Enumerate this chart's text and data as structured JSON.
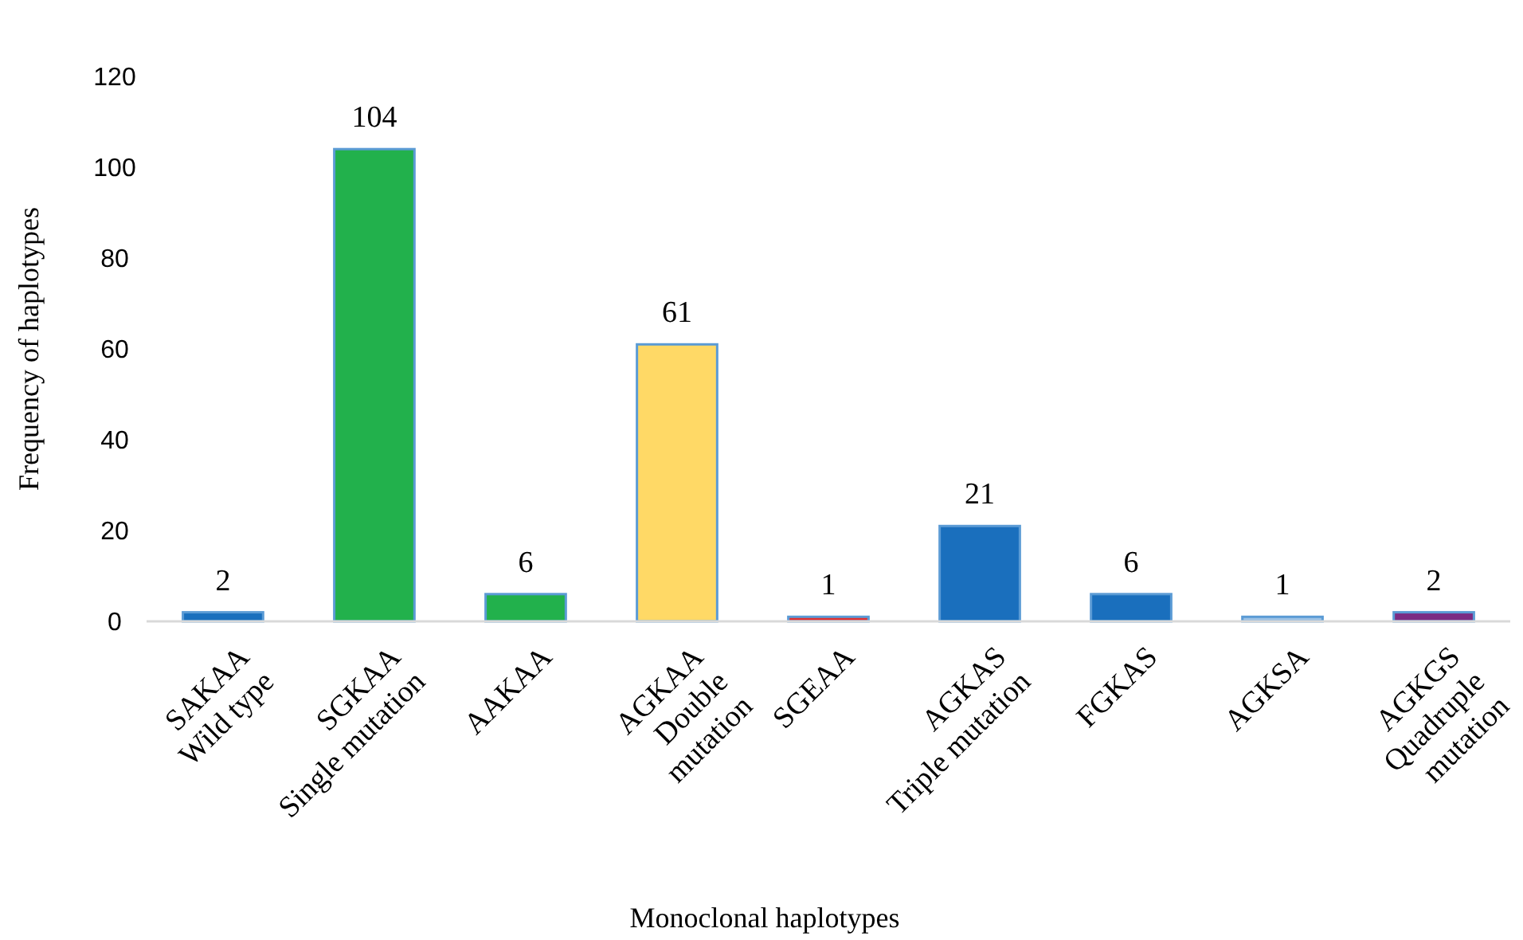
{
  "chart_data": {
    "type": "bar",
    "xlabel": "Monoclonal haplotypes",
    "ylabel": "Frequency of haplotypes",
    "categories": [
      "SAKAA\nWild type",
      "SGKAA\nSingle mutation",
      "AAKAA",
      "AGKAA\nDouble\nmutation",
      "SGEAA",
      "AGKAS\nTriple mutation",
      "FGKAS",
      "AGKSA",
      "AGKGS\nQuadruple\nmutation"
    ],
    "values": [
      2,
      104,
      6,
      61,
      1,
      21,
      6,
      1,
      2
    ],
    "colors": [
      "#1a6fbd",
      "#22b14c",
      "#22b14c",
      "#ffd966",
      "#e03030",
      "#1a6fbd",
      "#1a6fbd",
      "#9dc3e6",
      "#7b2c83"
    ],
    "ylim": [
      0,
      120
    ],
    "yticks": [
      0,
      20,
      40,
      60,
      80,
      100,
      120
    ],
    "grid": false,
    "data_labels": true
  }
}
